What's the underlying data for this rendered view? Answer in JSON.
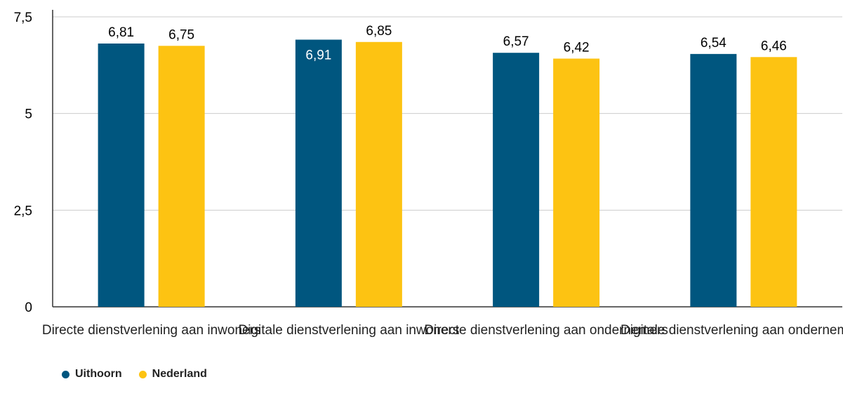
{
  "chart_data": {
    "type": "bar",
    "categories": [
      "Directe dienstverlening aan inwoners",
      "Digitale dienstverlening aan inwoners",
      "Directe dienstverlening aan ondernemers",
      "Digitale dienstverlening aan ondernemers"
    ],
    "series": [
      {
        "name": "Uithoorn",
        "values": [
          6.81,
          6.91,
          6.57,
          6.54
        ],
        "labels": [
          "6,81",
          "6,91",
          "6,57",
          "6,54"
        ],
        "color": "#00567f"
      },
      {
        "name": "Nederland",
        "values": [
          6.75,
          6.85,
          6.42,
          6.46
        ],
        "labels": [
          "6,75",
          "6,85",
          "6,42",
          "6,46"
        ],
        "color": "#fdc312"
      }
    ],
    "yticks": [
      {
        "value": 0,
        "label": "0"
      },
      {
        "value": 2.5,
        "label": "2,5"
      },
      {
        "value": 5,
        "label": "5"
      },
      {
        "value": 7.5,
        "label": "7,5"
      }
    ],
    "ylim": [
      0,
      7.5
    ],
    "grid": true,
    "legend_position": "bottom-left",
    "title": "",
    "xlabel": "",
    "ylabel": ""
  }
}
